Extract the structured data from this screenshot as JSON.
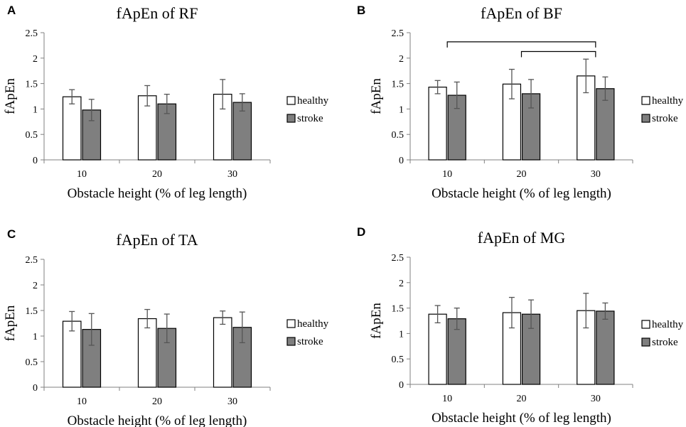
{
  "figure": {
    "colors": {
      "healthy": "#ffffff",
      "stroke": "#7f7f7f",
      "outline": "#000000",
      "axis": "#808080",
      "errorbar": "#555555"
    }
  },
  "chart_data": [
    {
      "panel": "A",
      "type": "bar",
      "title": "fApEn of RF",
      "xlabel": "Obstacle height (% of leg length)",
      "ylabel": "fApEn",
      "categories": [
        "10",
        "20",
        "30"
      ],
      "ylim": [
        0,
        2.5
      ],
      "yticks": [
        "0",
        "0.5",
        "1",
        "1.5",
        "2",
        "2.5"
      ],
      "legend": "right",
      "series": [
        {
          "name": "healthy",
          "values": [
            1.24,
            1.26,
            1.29
          ],
          "errors": [
            0.14,
            0.2,
            0.29
          ]
        },
        {
          "name": "stroke",
          "values": [
            0.98,
            1.1,
            1.13
          ],
          "errors": [
            0.21,
            0.19,
            0.17
          ]
        }
      ],
      "brackets": []
    },
    {
      "panel": "B",
      "type": "bar",
      "title": "fApEn of BF",
      "xlabel": "Obstacle height (% of leg length)",
      "ylabel": "fApEn",
      "categories": [
        "10",
        "20",
        "30"
      ],
      "ylim": [
        0,
        2.5
      ],
      "yticks": [
        "0",
        "0.5",
        "1",
        "1.5",
        "2",
        "2.5"
      ],
      "legend": "right",
      "series": [
        {
          "name": "healthy",
          "values": [
            1.43,
            1.49,
            1.65
          ],
          "errors": [
            0.13,
            0.29,
            0.33
          ]
        },
        {
          "name": "stroke",
          "values": [
            1.27,
            1.3,
            1.4
          ],
          "errors": [
            0.26,
            0.28,
            0.23
          ]
        }
      ],
      "brackets": [
        {
          "from_category": 0,
          "to_category": 2,
          "level": 2.32
        },
        {
          "from_category": 1,
          "to_category": 2,
          "level": 2.13
        }
      ]
    },
    {
      "panel": "C",
      "type": "bar",
      "title": "fApEn of TA",
      "xlabel": "Obstacle height (% of leg length)",
      "ylabel": "fApEn",
      "categories": [
        "10",
        "20",
        "30"
      ],
      "ylim": [
        0,
        2.5
      ],
      "yticks": [
        "0",
        "0.5",
        "1",
        "1.5",
        "2",
        "2.5"
      ],
      "legend": "right",
      "series": [
        {
          "name": "healthy",
          "values": [
            1.29,
            1.34,
            1.36
          ],
          "errors": [
            0.19,
            0.18,
            0.13
          ]
        },
        {
          "name": "stroke",
          "values": [
            1.13,
            1.15,
            1.17
          ],
          "errors": [
            0.31,
            0.28,
            0.3
          ]
        }
      ],
      "brackets": []
    },
    {
      "panel": "D",
      "type": "bar",
      "title": "fApEn of MG",
      "xlabel": "Obstacle height (% of leg length)",
      "ylabel": "fApEn",
      "categories": [
        "10",
        "20",
        "30"
      ],
      "ylim": [
        0,
        2.5
      ],
      "yticks": [
        "0",
        "0.5",
        "1",
        "1.5",
        "2",
        "2.5"
      ],
      "legend": "right",
      "series": [
        {
          "name": "healthy",
          "values": [
            1.38,
            1.41,
            1.45
          ],
          "errors": [
            0.17,
            0.3,
            0.34
          ]
        },
        {
          "name": "stroke",
          "values": [
            1.29,
            1.38,
            1.44
          ],
          "errors": [
            0.21,
            0.28,
            0.16
          ]
        }
      ],
      "brackets": []
    }
  ]
}
